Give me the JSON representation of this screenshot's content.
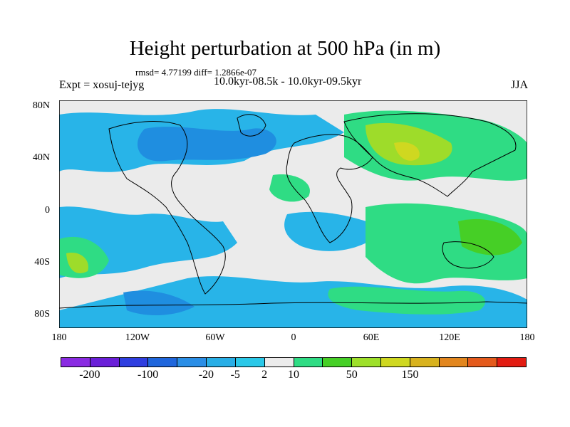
{
  "title": "Height perturbation at 500 hPa (in m)",
  "stats": "rmsd= 4.77199 diff= 1.2866e-07",
  "expt": "Expt = xosuj-tejyg",
  "period": "10.0kyr-08.5k - 10.0kyr-09.5kyr",
  "season": "JJA",
  "lat_labels": [
    "80N",
    "40N",
    "0",
    "40S",
    "80S"
  ],
  "lon_labels": [
    "180",
    "120W",
    "60W",
    "0",
    "60E",
    "120E",
    "180"
  ],
  "colorbar": {
    "labels": [
      "-200",
      "-100",
      "-20",
      "-5",
      "2",
      "10",
      "50",
      "150"
    ],
    "colors": [
      "#8a2be2",
      "#6a1fd8",
      "#2f3ee0",
      "#1f66dc",
      "#2a8ee6",
      "#28aee6",
      "#2ac8e8",
      "#ebebeb",
      "#2fdc84",
      "#46cf26",
      "#9ee02a",
      "#cfd820",
      "#d8b21e",
      "#e2861e",
      "#e45a1c",
      "#e21c12"
    ]
  },
  "legend_colors": {
    "ocean_neutral": "#ebebeb",
    "blue_light": "#28b4e8",
    "blue_mid": "#1f8ee0",
    "green": "#2fdc84",
    "green_yellow": "#9edc2a",
    "orange": "#e2a21e"
  }
}
